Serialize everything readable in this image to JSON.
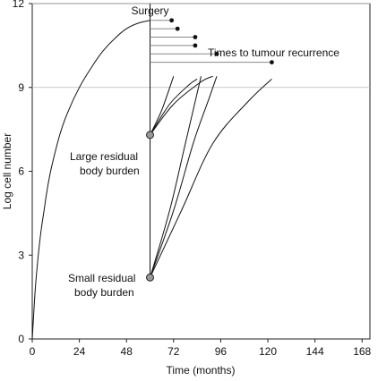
{
  "chart_data": {
    "type": "line",
    "xlabel": "Time  (months)",
    "ylabel": "Log cell number",
    "xlim": [
      0,
      172
    ],
    "ylim": [
      0,
      12
    ],
    "xticks": [
      0,
      24,
      48,
      72,
      96,
      120,
      144,
      168
    ],
    "yticks": [
      0,
      3,
      6,
      9,
      12
    ],
    "grid": "horizontal at 9 and 12",
    "surgery": {
      "label": "Surgery",
      "x": 60
    },
    "growth_curve": {
      "points": [
        [
          0,
          0
        ],
        [
          1,
          1.2
        ],
        [
          2,
          2.2
        ],
        [
          4,
          3.6
        ],
        [
          6,
          4.6
        ],
        [
          8,
          5.5
        ],
        [
          10,
          6.2
        ],
        [
          14,
          7.3
        ],
        [
          18,
          8.1
        ],
        [
          24,
          9.0
        ],
        [
          30,
          9.7
        ],
        [
          36,
          10.3
        ],
        [
          42,
          10.75
        ],
        [
          48,
          11.1
        ],
        [
          54,
          11.3
        ],
        [
          60,
          11.4
        ]
      ]
    },
    "recurrence": {
      "label": "Times to tumour recurrence",
      "start_y": [
        11.4,
        11.1,
        10.8,
        10.5,
        10.2,
        9.9
      ],
      "end_x": [
        71,
        74,
        83,
        83,
        94,
        122
      ]
    },
    "residual_points": [
      {
        "label_line1": "Large residual",
        "label_line2": "body burden",
        "x": 60,
        "y": 7.3
      },
      {
        "label_line1": "Small residual",
        "label_line2": "body burden",
        "x": 60,
        "y": 2.2
      }
    ],
    "regrowth_from_large": [
      [
        [
          60,
          7.3
        ],
        [
          66,
          8.2
        ],
        [
          72,
          9.4
        ]
      ],
      [
        [
          60,
          7.3
        ],
        [
          70,
          8.4
        ],
        [
          80,
          9.1
        ],
        [
          84,
          9.3
        ]
      ],
      [
        [
          60,
          7.3
        ],
        [
          72,
          8.4
        ],
        [
          86,
          9.2
        ],
        [
          92,
          9.4
        ]
      ]
    ],
    "regrowth_from_small": [
      [
        [
          60,
          2.2
        ],
        [
          70,
          4.6
        ],
        [
          78,
          7.0
        ],
        [
          86,
          9.4
        ]
      ],
      [
        [
          60,
          2.2
        ],
        [
          72,
          4.6
        ],
        [
          82,
          7.0
        ],
        [
          90,
          8.6
        ],
        [
          94,
          9.4
        ]
      ],
      [
        [
          60,
          2.2
        ],
        [
          76,
          4.6
        ],
        [
          92,
          7.0
        ],
        [
          110,
          8.5
        ],
        [
          122,
          9.3
        ]
      ]
    ]
  }
}
